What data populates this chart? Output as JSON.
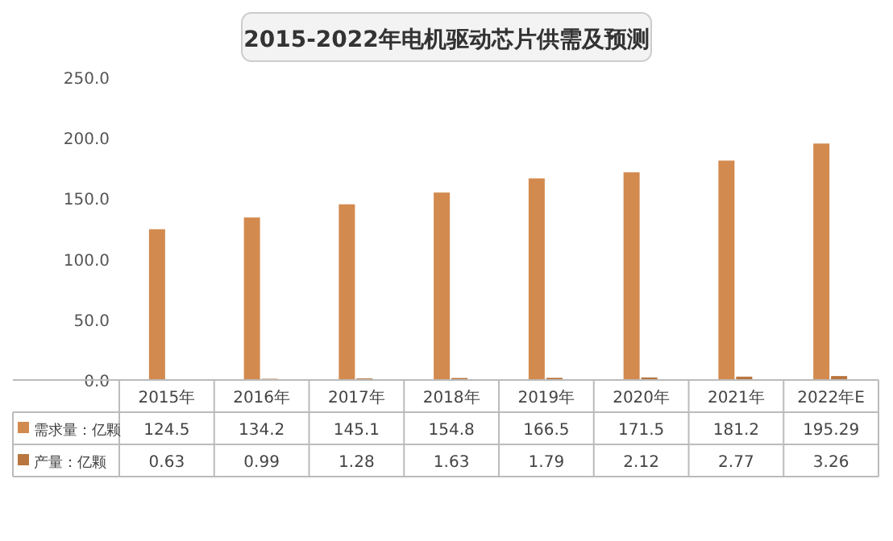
{
  "chart_data": {
    "type": "bar",
    "title": "2015-2022年电机驱动芯片供需及预测",
    "categories": [
      "2015年",
      "2016年",
      "2017年",
      "2018年",
      "2019年",
      "2020年",
      "2021年",
      "2022年E"
    ],
    "series": [
      {
        "name": "需求量：亿颗",
        "color": "#d38a4e",
        "values": [
          124.5,
          134.2,
          145.1,
          154.8,
          166.5,
          171.5,
          181.2,
          195.29
        ]
      },
      {
        "name": "产量：亿颗",
        "color": "#b9763f",
        "values": [
          0.63,
          0.99,
          1.28,
          1.63,
          1.79,
          2.12,
          2.77,
          3.26
        ]
      }
    ],
    "ylim": [
      0,
      250
    ],
    "yticks": [
      {
        "value": 0,
        "label": "0.0"
      },
      {
        "value": 50,
        "label": "50.0"
      },
      {
        "value": 100,
        "label": "100.0"
      },
      {
        "value": 150,
        "label": "150.0"
      },
      {
        "value": 200,
        "label": "200.0"
      },
      {
        "value": 250,
        "label": "250.0"
      }
    ],
    "data_labels": true,
    "legend": "bottom"
  }
}
